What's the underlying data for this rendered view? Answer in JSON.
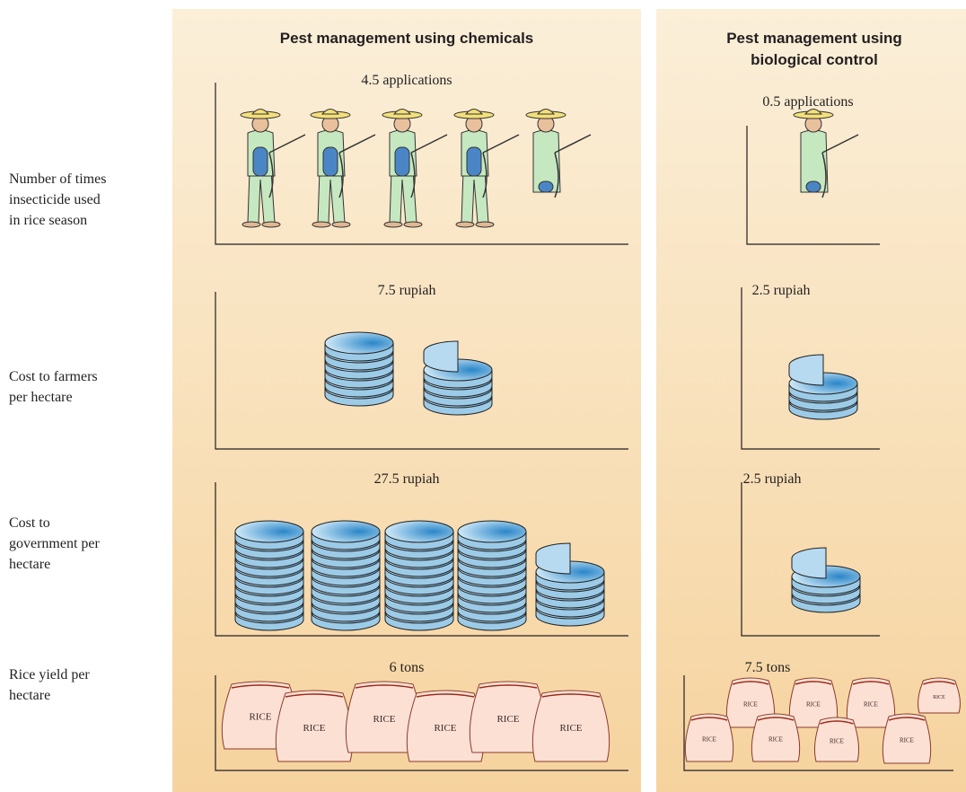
{
  "header": {
    "chemical": "Pest management using chemicals",
    "biological": [
      "Pest management using",
      "biological control"
    ]
  },
  "rows": [
    {
      "label": [
        "Number of times",
        "insecticide used",
        "in rice season"
      ],
      "chemical": "4.5 applications",
      "biological": "0.5 applications"
    },
    {
      "label": [
        "Cost to farmers",
        "per hectare"
      ],
      "chemical": "7.5 rupiah",
      "biological": "2.5 rupiah"
    },
    {
      "label": [
        "Cost to",
        "government per",
        "hectare"
      ],
      "chemical": "27.5 rupiah",
      "biological": "2.5 rupiah"
    },
    {
      "label": [
        "Rice yield per",
        "hectare"
      ],
      "chemical": "6 tons",
      "biological": "7.5 tons"
    }
  ],
  "bag_label": "RICE"
}
